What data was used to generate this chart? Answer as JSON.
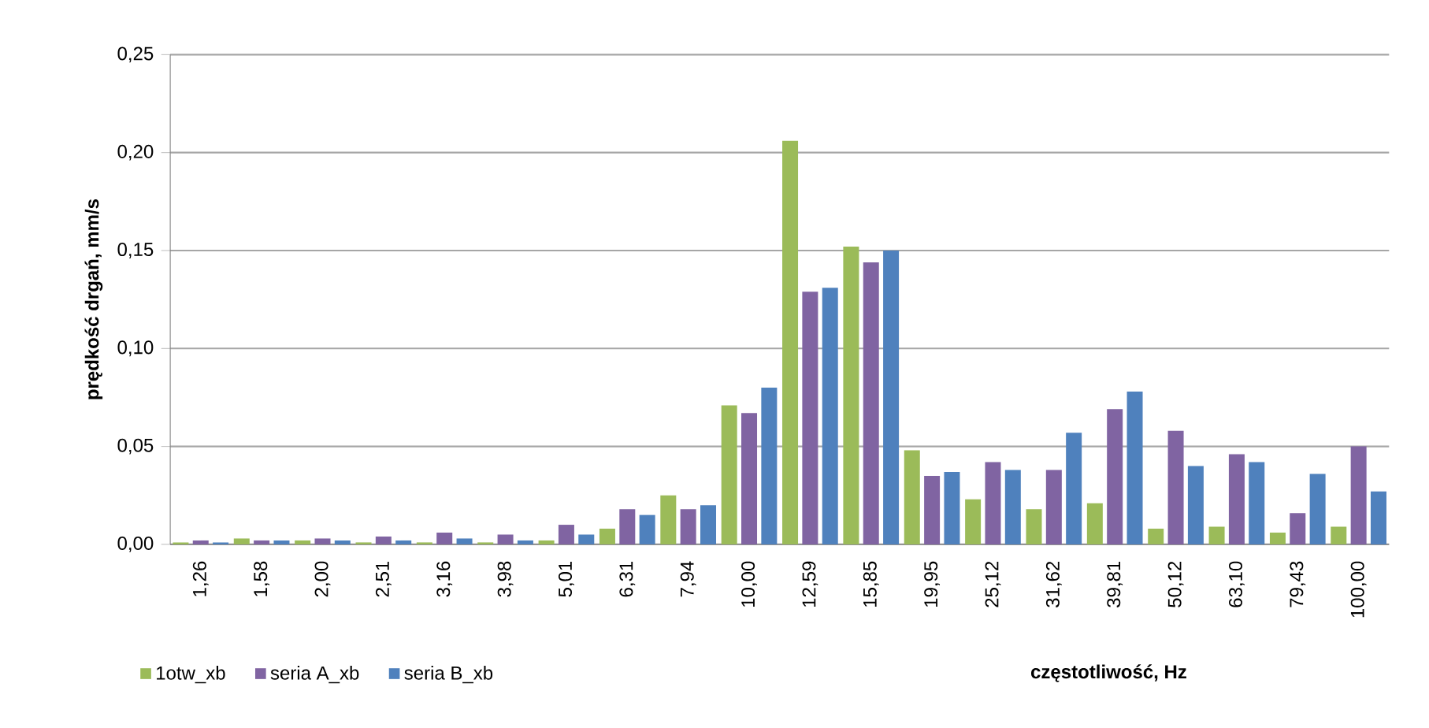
{
  "chart_data": {
    "type": "bar",
    "xlabel": "częstotliwość, Hz",
    "ylabel": "prędkość drgań, mm/s",
    "categories": [
      "1,26",
      "1,58",
      "2,00",
      "2,51",
      "3,16",
      "3,98",
      "5,01",
      "6,31",
      "7,94",
      "10,00",
      "12,59",
      "15,85",
      "19,95",
      "25,12",
      "31,62",
      "39,81",
      "50,12",
      "63,10",
      "79,43",
      "100,00"
    ],
    "series": [
      {
        "name": "1otw_xb",
        "color": "#9bbb59",
        "values": [
          0.001,
          0.003,
          0.002,
          0.001,
          0.001,
          0.001,
          0.002,
          0.008,
          0.025,
          0.071,
          0.206,
          0.152,
          0.048,
          0.023,
          0.018,
          0.021,
          0.008,
          0.009,
          0.006,
          0.009
        ]
      },
      {
        "name": "seria A_xb",
        "color": "#8064a2",
        "values": [
          0.002,
          0.002,
          0.003,
          0.004,
          0.006,
          0.005,
          0.01,
          0.018,
          0.018,
          0.067,
          0.129,
          0.144,
          0.035,
          0.042,
          0.038,
          0.069,
          0.058,
          0.046,
          0.016,
          0.05
        ]
      },
      {
        "name": "seria B_xb",
        "color": "#4f81bd",
        "values": [
          0.001,
          0.002,
          0.002,
          0.002,
          0.003,
          0.002,
          0.005,
          0.015,
          0.02,
          0.08,
          0.131,
          0.15,
          0.037,
          0.038,
          0.057,
          0.078,
          0.04,
          0.042,
          0.036,
          0.027
        ]
      }
    ],
    "ylim": [
      0,
      0.25
    ],
    "yticks": [
      {
        "value": 0,
        "label": "0,00"
      },
      {
        "value": 0.05,
        "label": "0,05"
      },
      {
        "value": 0.1,
        "label": "0,10"
      },
      {
        "value": 0.15,
        "label": "0,15"
      },
      {
        "value": 0.2,
        "label": "0,20"
      },
      {
        "value": 0.25,
        "label": "0,25"
      }
    ],
    "grid": "y",
    "legend": "bottom left"
  }
}
